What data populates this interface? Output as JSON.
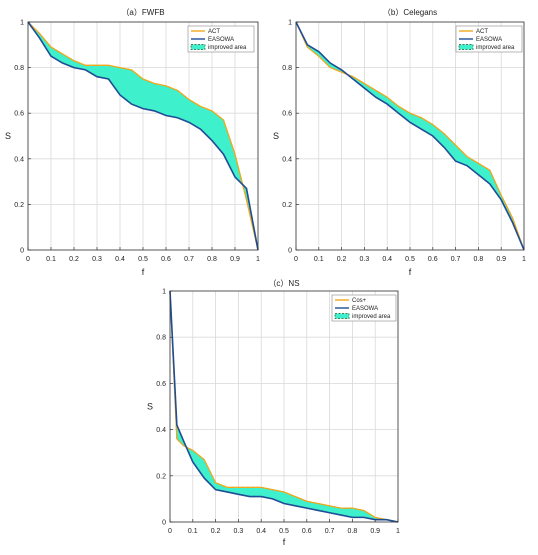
{
  "colors": {
    "series_a": "#f0a81c",
    "series_b": "#1f4e96",
    "fill": "#3ff0cc",
    "fill_edge": "#2a5a2a",
    "grid": "#d9d9d9",
    "axis": "#333333"
  },
  "chart_data": [
    {
      "type": "line",
      "title": "（a）FWFB",
      "xlabel": "f",
      "ylabel": "S",
      "xlim": [
        0,
        1
      ],
      "ylim": [
        0,
        1
      ],
      "xticks": [
        "0",
        "0.1",
        "0.2",
        "0.3",
        "0.4",
        "0.5",
        "0.6",
        "0.7",
        "0.8",
        "0.9",
        "1"
      ],
      "yticks": [
        "0",
        "0.2",
        "0.4",
        "0.6",
        "0.8",
        "1"
      ],
      "grid": true,
      "legend_position": "top-right",
      "series": [
        {
          "name": "ACT",
          "x": [
            0,
            0.05,
            0.1,
            0.15,
            0.2,
            0.25,
            0.3,
            0.35,
            0.4,
            0.45,
            0.5,
            0.55,
            0.6,
            0.65,
            0.7,
            0.75,
            0.8,
            0.85,
            0.9,
            0.95,
            1
          ],
          "y": [
            1,
            0.95,
            0.89,
            0.86,
            0.83,
            0.81,
            0.81,
            0.81,
            0.8,
            0.79,
            0.75,
            0.73,
            0.72,
            0.7,
            0.66,
            0.63,
            0.61,
            0.57,
            0.42,
            0.22,
            0
          ]
        },
        {
          "name": "EASOWA",
          "x": [
            0,
            0.05,
            0.1,
            0.15,
            0.2,
            0.25,
            0.3,
            0.35,
            0.4,
            0.45,
            0.5,
            0.55,
            0.6,
            0.65,
            0.7,
            0.75,
            0.8,
            0.85,
            0.9,
            0.95,
            1
          ],
          "y": [
            1,
            0.93,
            0.85,
            0.82,
            0.8,
            0.79,
            0.76,
            0.75,
            0.68,
            0.64,
            0.62,
            0.61,
            0.59,
            0.58,
            0.56,
            0.53,
            0.48,
            0.42,
            0.32,
            0.27,
            0
          ]
        }
      ],
      "fill_label": "improved area"
    },
    {
      "type": "line",
      "title": "（b）Celegans",
      "xlabel": "f",
      "ylabel": "S",
      "xlim": [
        0,
        1
      ],
      "ylim": [
        0,
        1
      ],
      "xticks": [
        "0",
        "0.1",
        "0.2",
        "0.3",
        "0.4",
        "0.5",
        "0.6",
        "0.7",
        "0.8",
        "0.9",
        "1"
      ],
      "yticks": [
        "0",
        "0.2",
        "0.4",
        "0.6",
        "0.8",
        "1"
      ],
      "grid": true,
      "legend_position": "top-right",
      "series": [
        {
          "name": "ACT",
          "x": [
            0,
            0.05,
            0.1,
            0.15,
            0.2,
            0.25,
            0.3,
            0.35,
            0.4,
            0.45,
            0.5,
            0.55,
            0.6,
            0.65,
            0.7,
            0.75,
            0.8,
            0.85,
            0.9,
            0.95,
            1
          ],
          "y": [
            1,
            0.89,
            0.85,
            0.8,
            0.78,
            0.76,
            0.73,
            0.7,
            0.67,
            0.63,
            0.6,
            0.58,
            0.55,
            0.51,
            0.46,
            0.41,
            0.38,
            0.35,
            0.24,
            0.14,
            0
          ]
        },
        {
          "name": "EASOWA",
          "x": [
            0,
            0.05,
            0.1,
            0.15,
            0.2,
            0.25,
            0.3,
            0.35,
            0.4,
            0.45,
            0.5,
            0.55,
            0.6,
            0.65,
            0.7,
            0.75,
            0.8,
            0.85,
            0.9,
            0.95,
            1
          ],
          "y": [
            1,
            0.9,
            0.87,
            0.82,
            0.79,
            0.75,
            0.71,
            0.67,
            0.64,
            0.6,
            0.56,
            0.53,
            0.5,
            0.45,
            0.39,
            0.37,
            0.33,
            0.29,
            0.22,
            0.12,
            0
          ]
        }
      ],
      "fill_label": "improved area"
    },
    {
      "type": "line",
      "title": "（c）NS",
      "xlabel": "f",
      "ylabel": "S",
      "xlim": [
        0,
        1
      ],
      "ylim": [
        0,
        1
      ],
      "xticks": [
        "0",
        "0.1",
        "0.2",
        "0.3",
        "0.4",
        "0.5",
        "0.6",
        "0.7",
        "0.8",
        "0.9",
        "1"
      ],
      "yticks": [
        "0",
        "0.2",
        "0.4",
        "0.6",
        "0.8",
        "1"
      ],
      "grid": true,
      "legend_position": "top-right",
      "series": [
        {
          "name": "Cos+",
          "x": [
            0,
            0.03,
            0.06,
            0.1,
            0.15,
            0.2,
            0.25,
            0.3,
            0.35,
            0.4,
            0.45,
            0.5,
            0.55,
            0.6,
            0.65,
            0.7,
            0.75,
            0.8,
            0.85,
            0.9,
            0.95,
            1
          ],
          "y": [
            1,
            0.36,
            0.33,
            0.31,
            0.27,
            0.17,
            0.15,
            0.15,
            0.15,
            0.15,
            0.14,
            0.13,
            0.11,
            0.09,
            0.08,
            0.07,
            0.06,
            0.06,
            0.05,
            0.02,
            0.01,
            0
          ]
        },
        {
          "name": "EASOWA",
          "x": [
            0,
            0.03,
            0.06,
            0.1,
            0.15,
            0.2,
            0.25,
            0.3,
            0.35,
            0.4,
            0.45,
            0.5,
            0.55,
            0.6,
            0.65,
            0.7,
            0.75,
            0.8,
            0.85,
            0.9,
            0.95,
            1
          ],
          "y": [
            1,
            0.42,
            0.35,
            0.26,
            0.19,
            0.14,
            0.13,
            0.12,
            0.11,
            0.11,
            0.1,
            0.08,
            0.07,
            0.06,
            0.05,
            0.04,
            0.03,
            0.02,
            0.02,
            0.01,
            0.01,
            0
          ]
        }
      ],
      "fill_label": "improved area"
    }
  ]
}
